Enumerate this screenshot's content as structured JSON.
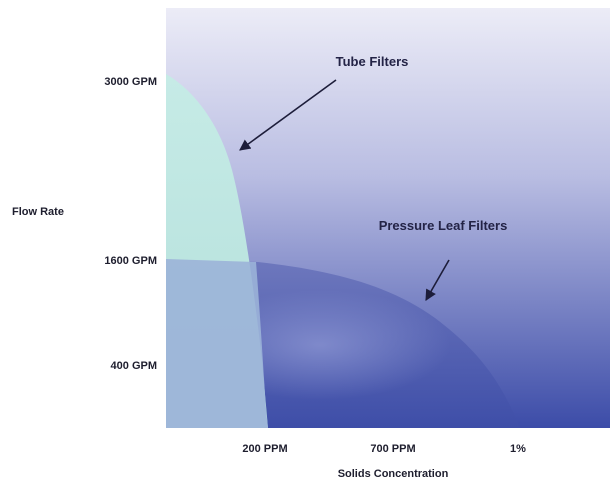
{
  "chart_data": {
    "type": "area",
    "title": "",
    "xlabel": "Solids Concentration",
    "ylabel": "Flow Rate",
    "x_ticks": [
      "200 PPM",
      "700 PPM",
      "1%"
    ],
    "y_ticks": [
      "3000 GPM",
      "1600 GPM",
      "400 GPM"
    ],
    "grid": false,
    "legend": "none",
    "series": [
      {
        "name": "Tube Filters",
        "color": "#bfe6e2",
        "max_flow": "3000 GPM",
        "max_solids": "200 PPM"
      },
      {
        "name": "Pressure Leaf Filters",
        "color": "#5560ad",
        "max_flow": "1600 GPM",
        "max_solids": "1%"
      }
    ],
    "annotations": [
      {
        "text": "Tube Filters",
        "target": "Tube Filters"
      },
      {
        "text": "Pressure Leaf Filters",
        "target": "Pressure Leaf Filters"
      }
    ],
    "colors": {
      "background_top": "#ececf7",
      "background_bottom": "#3c4ca8",
      "text": "#1e1e2e"
    }
  }
}
